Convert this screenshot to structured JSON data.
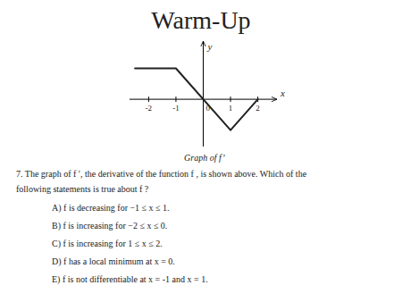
{
  "chart_data": {
    "type": "line",
    "title": "Warm-Up",
    "caption": "Graph of f’",
    "x": [
      -2.5,
      -1,
      1,
      2
    ],
    "values": [
      0.85,
      0.85,
      -0.85,
      0.0
    ],
    "color": "#222222",
    "xlim": [
      -2.7,
      2.7
    ],
    "ylim": [
      -1.3,
      1.6
    ],
    "xticks": [
      -2,
      -1,
      0,
      1,
      2
    ],
    "x_label": "x",
    "y_label": "y",
    "tick_labels": "x",
    "grid": false,
    "question": [
      "7. The graph of f ′, the derivative of the function f , is shown above. Which of the",
      "following statements is true about f ?"
    ],
    "answers": [
      "A)  f  is decreasing for −1 ≤ x ≤ 1.",
      "B)  f  is increasing for −2 ≤ x ≤ 0.",
      "C)  f  is increasing for 1 ≤ x ≤ 2.",
      "D)  f  has a local minimum at x = 0.",
      "E)  f  is not differentiable at x = -1 and x = 1."
    ]
  }
}
